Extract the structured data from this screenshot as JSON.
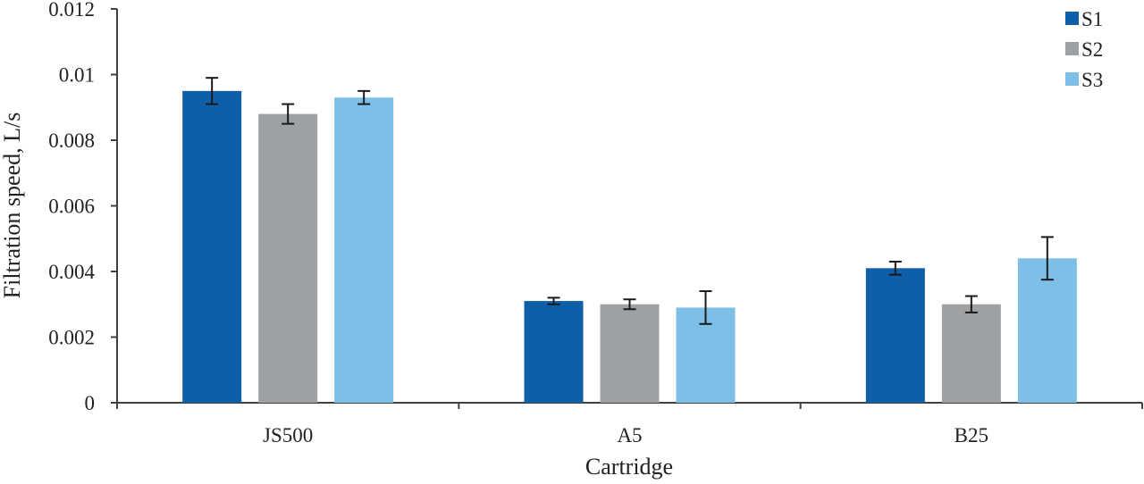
{
  "chart_data": {
    "type": "bar",
    "title": "",
    "xlabel": "Cartridge",
    "ylabel": "Filtration speed, L/s",
    "ylim": [
      0,
      0.012
    ],
    "yticks": [
      0,
      0.002,
      0.004,
      0.006,
      0.008,
      0.01,
      0.012
    ],
    "ytick_labels": [
      "0",
      "0.002",
      "0.004",
      "0.006",
      "0.008",
      "0.01",
      "0.012"
    ],
    "grid": false,
    "legend_position": "top-right",
    "categories": [
      "JS500",
      "A5",
      "B25"
    ],
    "series": [
      {
        "name": "S1",
        "color": "#0e5ea8",
        "values": [
          0.0095,
          0.0031,
          0.0041
        ],
        "errors": [
          0.0004,
          0.0001,
          0.0002
        ]
      },
      {
        "name": "S2",
        "color": "#9ea1a3",
        "values": [
          0.0088,
          0.003,
          0.003
        ],
        "errors": [
          0.0003,
          0.00015,
          0.00025
        ]
      },
      {
        "name": "S3",
        "color": "#7dbfe6",
        "values": [
          0.0093,
          0.0029,
          0.0044
        ],
        "errors": [
          0.0002,
          0.0005,
          0.00065
        ]
      }
    ]
  }
}
